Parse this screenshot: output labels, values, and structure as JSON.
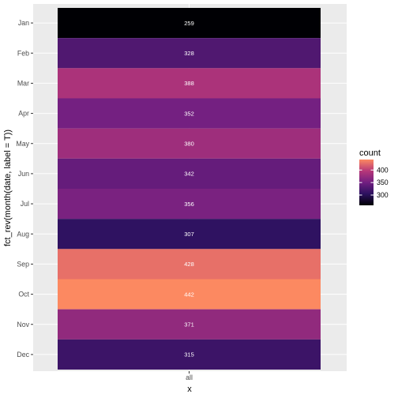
{
  "chart_data": {
    "type": "heatmap",
    "categories": [
      "Jan",
      "Feb",
      "Mar",
      "Apr",
      "May",
      "Jun",
      "Jul",
      "Aug",
      "Sep",
      "Oct",
      "Nov",
      "Dec"
    ],
    "x_categories": [
      "all"
    ],
    "values": [
      259,
      328,
      388,
      352,
      380,
      342,
      356,
      307,
      428,
      442,
      371,
      315
    ],
    "xlabel": "x",
    "ylabel": "fct_rev(month(date, label = T))",
    "legend": {
      "title": "count",
      "ticks": [
        300,
        350,
        400
      ],
      "range": [
        259,
        442
      ],
      "placement": "right"
    },
    "colors": {
      "panel_background": "#ebebeb",
      "gridline": "#ffffff",
      "scale_low": "#000004",
      "scale_high": "#fc8961"
    },
    "grid": true
  }
}
